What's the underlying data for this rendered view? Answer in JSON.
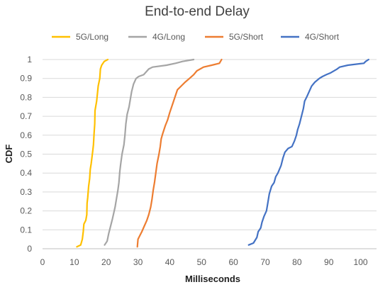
{
  "chart_data": {
    "type": "line",
    "title": "End-to-end Delay",
    "xlabel": "Milliseconds",
    "ylabel": "CDF",
    "xlim": [
      0,
      105
    ],
    "ylim": [
      0,
      1
    ],
    "xticks": [
      "0",
      "10",
      "20",
      "30",
      "40",
      "50",
      "60",
      "70",
      "80",
      "90",
      "100"
    ],
    "yticks": [
      "0",
      "0.1",
      "0.2",
      "0.3",
      "0.4",
      "0.5",
      "0.6",
      "0.7",
      "0.8",
      "0.9",
      "1"
    ],
    "grid": "horizontal",
    "legend": "top",
    "series": [
      {
        "name": "5G/Long",
        "color": "#FFC000",
        "points": [
          [
            10.8,
            0.01
          ],
          [
            12.0,
            0.02
          ],
          [
            12.5,
            0.05
          ],
          [
            12.8,
            0.09
          ],
          [
            13.0,
            0.13
          ],
          [
            13.6,
            0.15
          ],
          [
            13.9,
            0.18
          ],
          [
            14.0,
            0.24
          ],
          [
            14.2,
            0.27
          ],
          [
            14.5,
            0.33
          ],
          [
            14.8,
            0.37
          ],
          [
            15.0,
            0.42
          ],
          [
            15.3,
            0.45
          ],
          [
            15.8,
            0.52
          ],
          [
            16.0,
            0.55
          ],
          [
            16.2,
            0.61
          ],
          [
            16.4,
            0.66
          ],
          [
            16.5,
            0.73
          ],
          [
            17.0,
            0.78
          ],
          [
            17.5,
            0.86
          ],
          [
            18.0,
            0.9
          ],
          [
            18.2,
            0.95
          ],
          [
            18.6,
            0.97
          ],
          [
            19.0,
            0.98
          ],
          [
            19.4,
            0.99
          ],
          [
            20.5,
            1.0
          ]
        ]
      },
      {
        "name": "4G/Long",
        "color": "#A5A5A5",
        "points": [
          [
            19.5,
            0.02
          ],
          [
            20.3,
            0.04
          ],
          [
            20.8,
            0.08
          ],
          [
            21.4,
            0.12
          ],
          [
            22.0,
            0.16
          ],
          [
            22.8,
            0.22
          ],
          [
            23.3,
            0.27
          ],
          [
            23.7,
            0.31
          ],
          [
            24.0,
            0.35
          ],
          [
            24.3,
            0.41
          ],
          [
            24.6,
            0.45
          ],
          [
            25.0,
            0.5
          ],
          [
            25.6,
            0.55
          ],
          [
            25.9,
            0.6
          ],
          [
            26.2,
            0.66
          ],
          [
            26.6,
            0.71
          ],
          [
            27.2,
            0.75
          ],
          [
            27.6,
            0.79
          ],
          [
            28.0,
            0.83
          ],
          [
            28.6,
            0.87
          ],
          [
            29.4,
            0.9
          ],
          [
            30.2,
            0.91
          ],
          [
            31.8,
            0.92
          ],
          [
            33.4,
            0.95
          ],
          [
            34.6,
            0.96
          ],
          [
            39.0,
            0.97
          ],
          [
            41.8,
            0.98
          ],
          [
            44.0,
            0.99
          ],
          [
            47.5,
            1.0
          ]
        ]
      },
      {
        "name": "5G/Short",
        "color": "#ED7D31",
        "points": [
          [
            29.8,
            0.01
          ],
          [
            30.0,
            0.05
          ],
          [
            30.6,
            0.07
          ],
          [
            31.2,
            0.09
          ],
          [
            32.0,
            0.12
          ],
          [
            32.8,
            0.15
          ],
          [
            33.4,
            0.18
          ],
          [
            34.0,
            0.22
          ],
          [
            34.4,
            0.26
          ],
          [
            34.8,
            0.31
          ],
          [
            35.2,
            0.35
          ],
          [
            35.6,
            0.4
          ],
          [
            36.0,
            0.45
          ],
          [
            36.6,
            0.5
          ],
          [
            37.0,
            0.54
          ],
          [
            37.3,
            0.58
          ],
          [
            37.8,
            0.61
          ],
          [
            38.6,
            0.65
          ],
          [
            39.3,
            0.68
          ],
          [
            40.0,
            0.72
          ],
          [
            40.8,
            0.76
          ],
          [
            41.6,
            0.8
          ],
          [
            42.4,
            0.84
          ],
          [
            43.6,
            0.86
          ],
          [
            44.8,
            0.88
          ],
          [
            46.2,
            0.9
          ],
          [
            47.5,
            0.92
          ],
          [
            48.5,
            0.94
          ],
          [
            50.6,
            0.96
          ],
          [
            53.2,
            0.97
          ],
          [
            55.6,
            0.98
          ],
          [
            56.3,
            1.0
          ]
        ]
      },
      {
        "name": "4G/Short",
        "color": "#4472C4",
        "points": [
          [
            64.8,
            0.02
          ],
          [
            66.3,
            0.03
          ],
          [
            67.4,
            0.06
          ],
          [
            67.8,
            0.09
          ],
          [
            68.6,
            0.11
          ],
          [
            69.0,
            0.14
          ],
          [
            69.6,
            0.17
          ],
          [
            70.4,
            0.2
          ],
          [
            70.8,
            0.24
          ],
          [
            71.3,
            0.29
          ],
          [
            72.0,
            0.33
          ],
          [
            72.8,
            0.35
          ],
          [
            73.3,
            0.38
          ],
          [
            74.0,
            0.4
          ],
          [
            75.0,
            0.44
          ],
          [
            75.6,
            0.48
          ],
          [
            76.2,
            0.51
          ],
          [
            77.2,
            0.53
          ],
          [
            78.4,
            0.54
          ],
          [
            79.2,
            0.57
          ],
          [
            79.8,
            0.6
          ],
          [
            80.2,
            0.63
          ],
          [
            80.8,
            0.66
          ],
          [
            81.4,
            0.7
          ],
          [
            82.0,
            0.74
          ],
          [
            82.4,
            0.78
          ],
          [
            83.0,
            0.8
          ],
          [
            83.8,
            0.83
          ],
          [
            84.6,
            0.86
          ],
          [
            85.6,
            0.88
          ],
          [
            87.0,
            0.9
          ],
          [
            88.0,
            0.91
          ],
          [
            89.2,
            0.92
          ],
          [
            90.6,
            0.93
          ],
          [
            92.6,
            0.95
          ],
          [
            93.4,
            0.96
          ],
          [
            96.0,
            0.97
          ],
          [
            101.0,
            0.98
          ],
          [
            101.6,
            0.99
          ],
          [
            102.5,
            1.0
          ]
        ]
      }
    ]
  }
}
